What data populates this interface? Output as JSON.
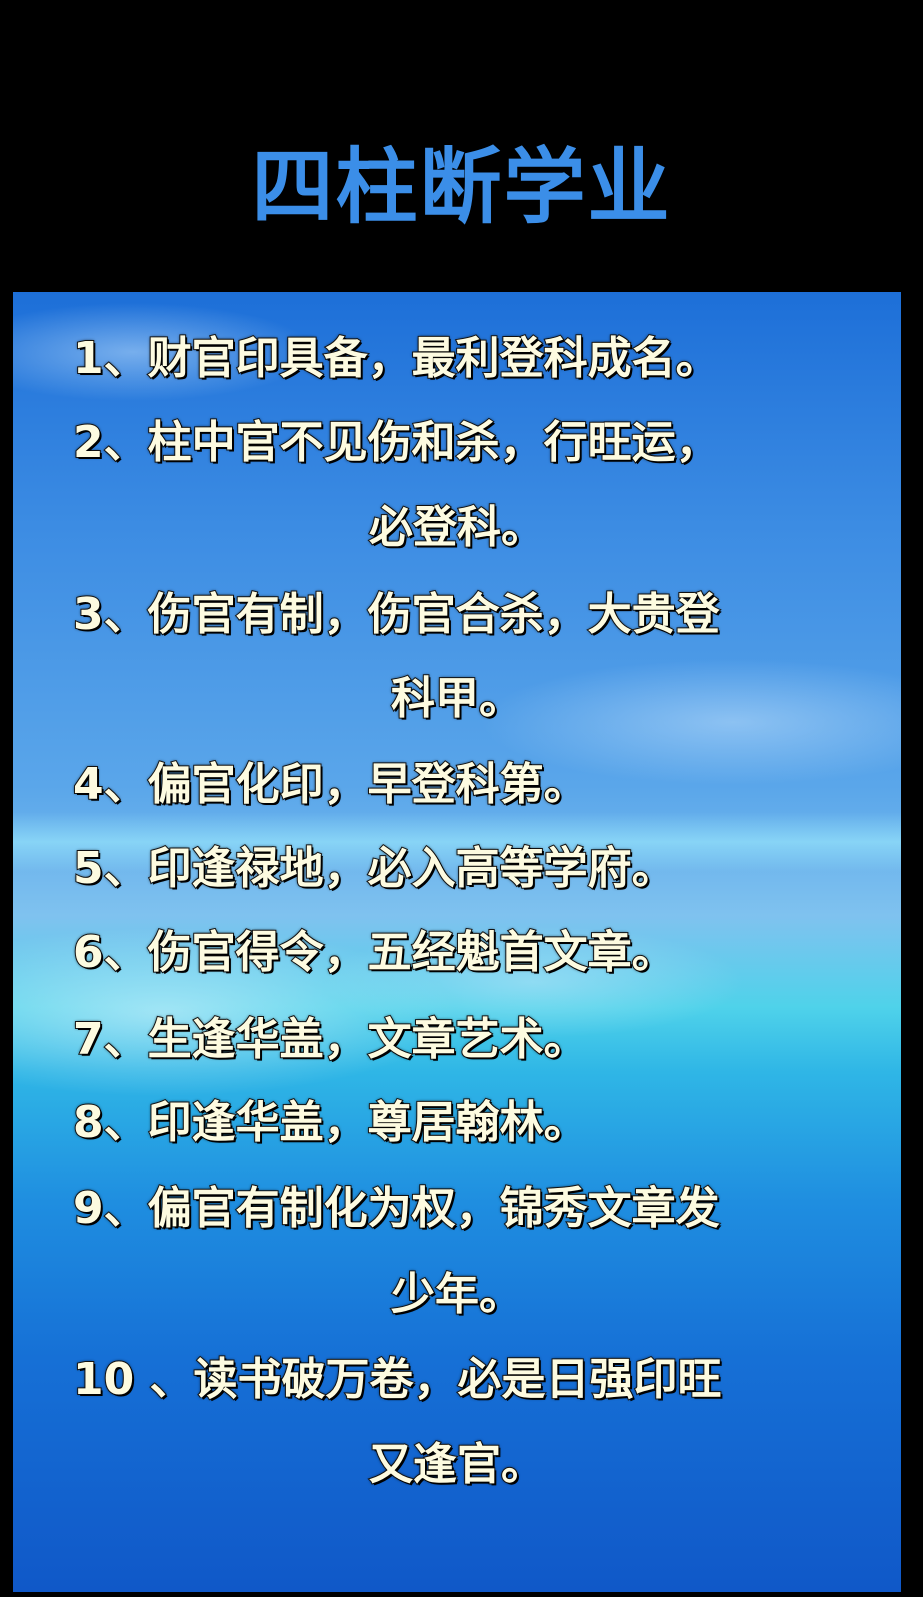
{
  "title": "四柱断学业",
  "colors": {
    "title": "#3b8ee8",
    "text": "#fdfbe0",
    "background": "#000000"
  },
  "rules": [
    {
      "line1": "1、财官印具备，最利登科成名。",
      "line2": ""
    },
    {
      "line1": "2、柱中官不见伤和杀，行旺运，",
      "line2": "必登科。"
    },
    {
      "line1": "3、伤官有制，伤官合杀，大贵登",
      "line2": "科甲。"
    },
    {
      "line1": "4、偏官化印，早登科第。",
      "line2": ""
    },
    {
      "line1": "5、印逢禄地，必入高等学府。",
      "line2": ""
    },
    {
      "line1": "6、伤官得令，五经魁首文章。",
      "line2": ""
    },
    {
      "line1": "7、生逢华盖，文章艺术。",
      "line2": ""
    },
    {
      "line1": "8、印逢华盖，尊居翰林。",
      "line2": ""
    },
    {
      "line1": "9、偏官有制化为权，锦秀文章发",
      "line2": "少年。"
    },
    {
      "line1": "10 、读书破万卷，必是日强印旺",
      "line2": "又逢官。"
    }
  ]
}
